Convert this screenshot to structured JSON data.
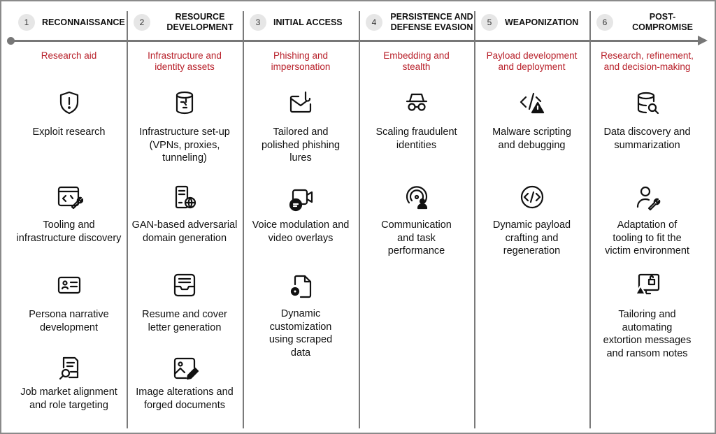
{
  "accent_color": "#b8202a",
  "stages": [
    {
      "number": "1",
      "title": "RECONNAISSANCE",
      "subtitle": "Research aid",
      "items": [
        {
          "icon": "shield-alert-icon",
          "label": "Exploit research"
        },
        {
          "icon": "code-window-wrench-icon",
          "label": "Tooling and infrastructure discovery"
        },
        {
          "icon": "id-card-icon",
          "label": "Persona narrative development"
        },
        {
          "icon": "document-search-icon",
          "label": "Job market alignment and role targeting"
        }
      ]
    },
    {
      "number": "2",
      "title": "RESOURCE DEVELOPMENT",
      "subtitle": "Infrastructure and identity assets",
      "items": [
        {
          "icon": "database-network-icon",
          "label": "Infrastructure set-up (VPNs, proxies, tunneling)"
        },
        {
          "icon": "server-globe-icon",
          "label": "GAN-based adversarial domain generation"
        },
        {
          "icon": "inbox-tray-icon",
          "label": "Resume and cover letter generation"
        },
        {
          "icon": "image-edit-icon",
          "label": "Image alterations and forged documents"
        }
      ]
    },
    {
      "number": "3",
      "title": "INITIAL ACCESS",
      "subtitle": "Phishing and impersonation",
      "items": [
        {
          "icon": "mail-hook-icon",
          "label": "Tailored and polished phishing lures"
        },
        {
          "icon": "video-chat-icon",
          "label": "Voice modulation and video overlays"
        },
        {
          "icon": "document-gear-icon",
          "label": "Dynamic customization using scraped data"
        }
      ]
    },
    {
      "number": "4",
      "title": "PERSISTENCE AND DEFENSE EVASION",
      "subtitle": "Embedding and stealth",
      "items": [
        {
          "icon": "incognito-icon",
          "label": "Scaling fraudulent identities"
        },
        {
          "icon": "broadcast-person-icon",
          "label": "Communication and task performance"
        }
      ]
    },
    {
      "number": "5",
      "title": "WEAPONIZATION",
      "subtitle": "Payload development and deployment",
      "items": [
        {
          "icon": "code-warning-icon",
          "label": "Malware scripting and debugging"
        },
        {
          "icon": "code-circle-icon",
          "label": "Dynamic payload crafting and regeneration"
        }
      ]
    },
    {
      "number": "6",
      "title": "POST-COMPROMISE",
      "subtitle": "Research, refinement, and decision-making",
      "items": [
        {
          "icon": "database-search-icon",
          "label": "Data discovery and summarization"
        },
        {
          "icon": "person-wrench-icon",
          "label": "Adaptation of tooling to fit the victim environment"
        },
        {
          "icon": "monitor-lock-warning-icon",
          "label": "Tailoring and automating extortion messages and ransom notes"
        }
      ]
    }
  ]
}
